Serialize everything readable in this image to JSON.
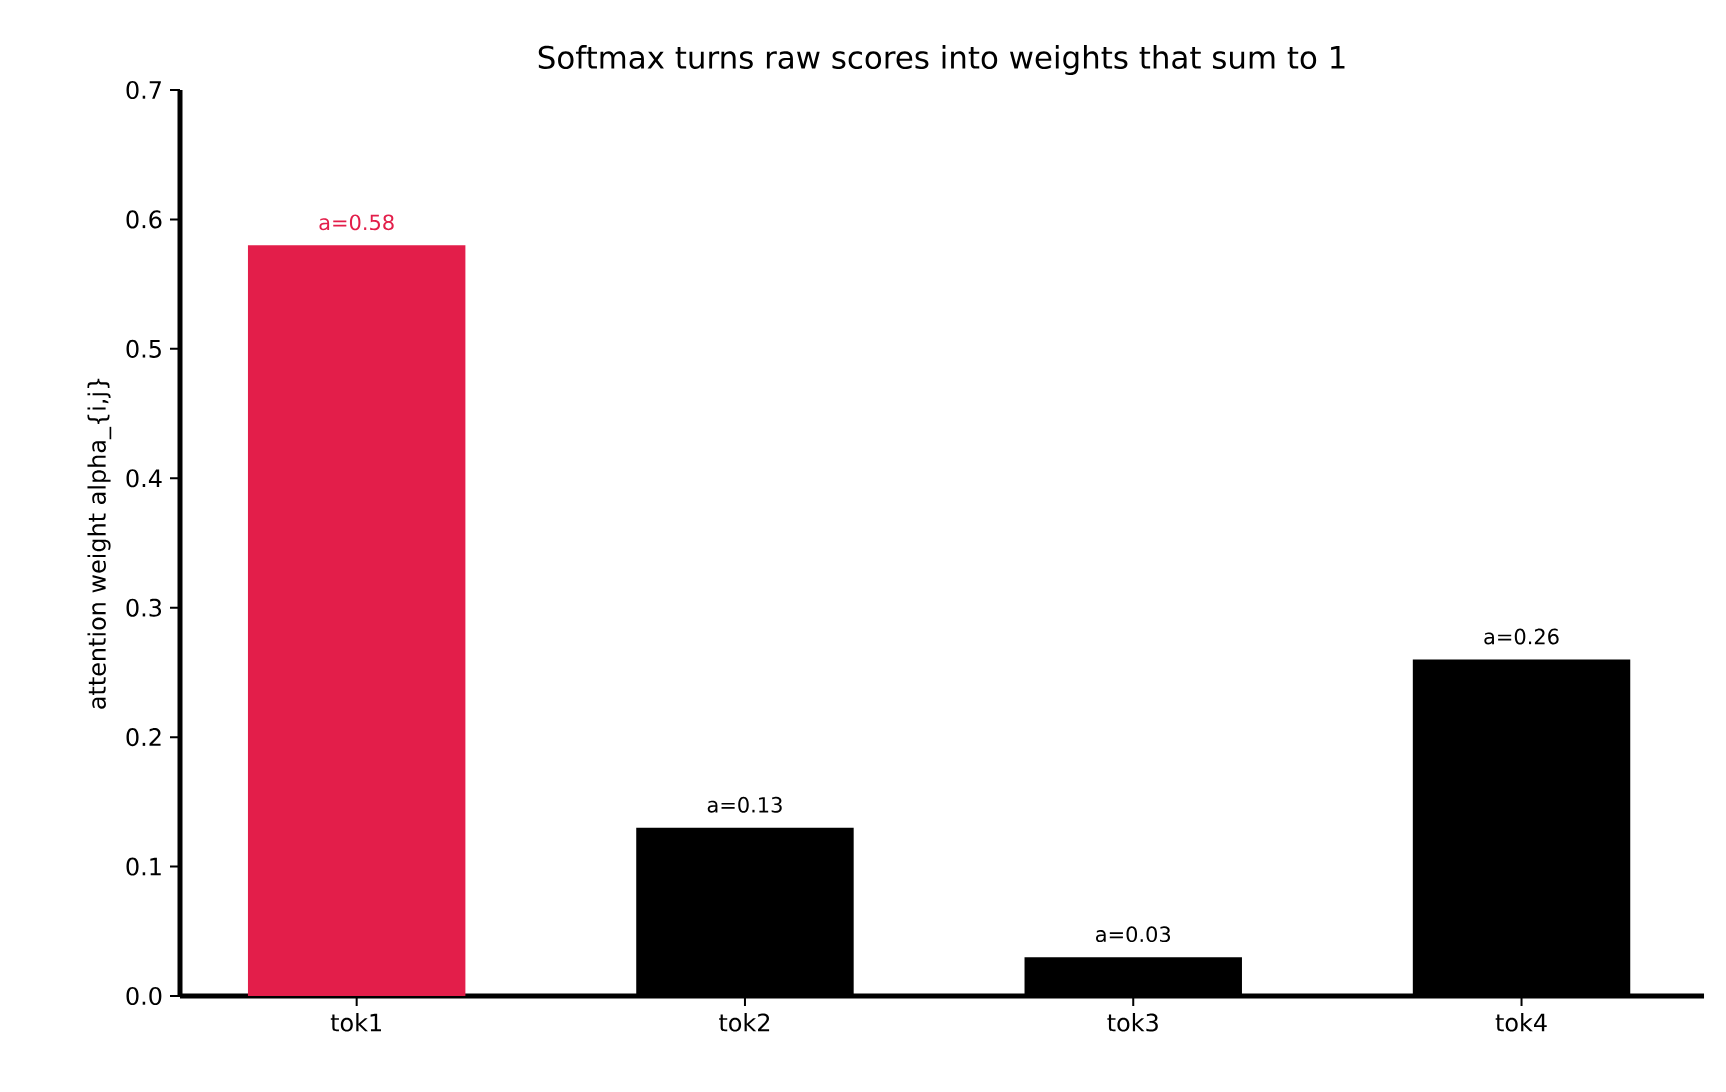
{
  "chart_data": {
    "type": "bar",
    "title": "Softmax turns raw scores into weights that sum to 1",
    "ylabel": "attention weight  alpha_{i,j}",
    "categories": [
      "tok1",
      "tok2",
      "tok3",
      "tok4"
    ],
    "values": [
      0.58,
      0.13,
      0.03,
      0.26
    ],
    "colors": [
      "#e31e4a",
      "#000000",
      "#000000",
      "#000000"
    ],
    "value_labels": [
      "a=0.58",
      "a=0.13",
      "a=0.03",
      "a=0.26"
    ],
    "ylim": [
      0,
      0.7
    ],
    "yticks": [
      {
        "value": 0,
        "label": "0.0"
      },
      0.1,
      0.2,
      0.3,
      0.4,
      0.5,
      0.6,
      0.7
    ]
  }
}
